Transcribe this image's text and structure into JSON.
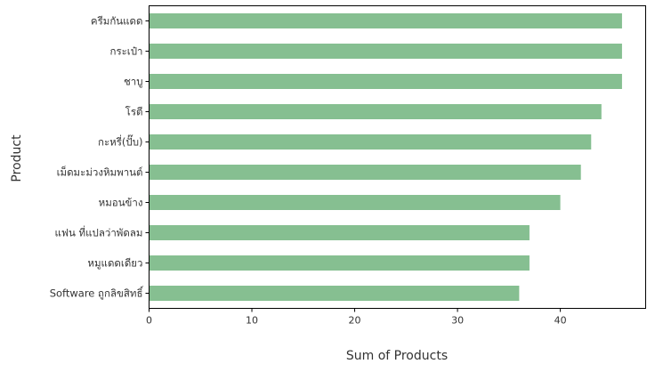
{
  "chart_data": {
    "type": "bar",
    "orientation": "horizontal",
    "xlabel": "Sum of Products",
    "ylabel": "Product",
    "xlim": [
      0,
      48.3
    ],
    "xticks": [
      0,
      10,
      20,
      30,
      40
    ],
    "bar_color": "#86bf91",
    "grid": false,
    "categories": [
      "ครีมกันแดด",
      "กระเป๋า",
      "ชาบู",
      "โรตี",
      "กะหรี่(ปั๊บ)",
      "เม็ดมะม่วงหิมพานต์",
      "หมอนข้าง",
      "แฟน ที่แปลว่าพัดลม",
      "หมูแดดเดียว",
      "Software ถูกลิขสิทธิ์"
    ],
    "values": [
      46,
      46,
      46,
      44,
      43,
      42,
      40,
      37,
      37,
      36
    ]
  }
}
